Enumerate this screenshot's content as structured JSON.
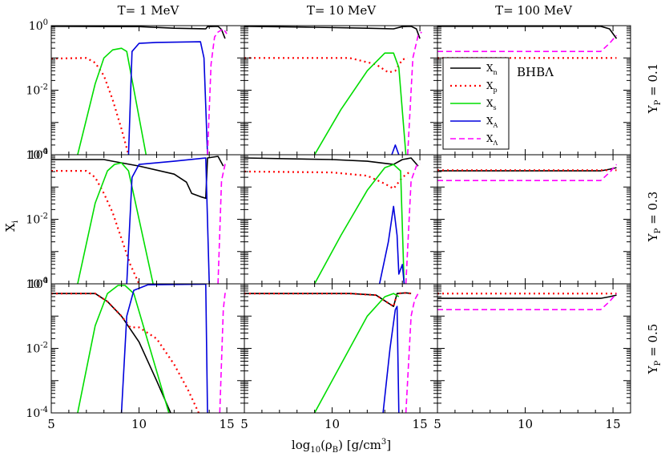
{
  "figure": {
    "xlabel": {
      "main": "log",
      "sub": "10",
      "mid": "(ρ",
      "sub2": "B",
      "rest": ") [g/cm",
      "sup": "3",
      "end": "]"
    },
    "ylabel": {
      "main": "X",
      "sub": "i"
    }
  },
  "colors": {
    "Xn": "#000000",
    "Xp": "#ff0000",
    "Xs": "#00dd00",
    "XA": "#0000dd",
    "XLambda": "#ff00ff"
  },
  "legend": {
    "entries": [
      {
        "key": "Xn",
        "main": "X",
        "sub": "n"
      },
      {
        "key": "Xp",
        "main": "X",
        "sub": "p"
      },
      {
        "key": "Xs",
        "main": "X",
        "sub": "s"
      },
      {
        "key": "XA",
        "main": "X",
        "sub": "A"
      },
      {
        "key": "XLambda",
        "main": "X",
        "sub": "Λ"
      }
    ],
    "model_label": "BHBΛ"
  },
  "chart_data": {
    "type": "line",
    "xlim": [
      5,
      16
    ],
    "ylim_log10": [
      -4,
      0
    ],
    "ytick_base": "10",
    "xticks": [
      "5",
      "10",
      "15"
    ],
    "yticks": [
      {
        "exp": "0",
        "v": 0
      },
      {
        "exp": "-2",
        "v": -2
      },
      {
        "exp": "-4",
        "v": -4
      }
    ],
    "columns": [
      {
        "title": "T= 1 MeV"
      },
      {
        "title": "T= 10 MeV"
      },
      {
        "title": "T= 100 MeV"
      }
    ],
    "rows": [
      {
        "label_main": "Y",
        "label_sub": "P",
        "label_rest": " = 0.1"
      },
      {
        "label_main": "Y",
        "label_sub": "P",
        "label_rest": " = 0.3"
      },
      {
        "label_main": "Y",
        "label_sub": "P",
        "label_rest": " = 0.5"
      }
    ],
    "panels": [
      [
        {
          "Xn": [
            [
              5,
              -0.02
            ],
            [
              10,
              -0.03
            ],
            [
              12,
              -0.08
            ],
            [
              13.8,
              -0.1
            ],
            [
              13.9,
              -0.03
            ],
            [
              14.5,
              -0.02
            ],
            [
              14.7,
              -0.12
            ],
            [
              14.9,
              -0.4
            ]
          ],
          "Xp": [
            [
              5,
              -1.02
            ],
            [
              7,
              -1.0
            ],
            [
              7.5,
              -1.15
            ],
            [
              8,
              -1.55
            ],
            [
              8.5,
              -2.3
            ],
            [
              9,
              -3.2
            ],
            [
              9.4,
              -4
            ]
          ],
          "Xs": [
            [
              6.5,
              -4
            ],
            [
              7.5,
              -1.8
            ],
            [
              8,
              -1.0
            ],
            [
              8.5,
              -0.75
            ],
            [
              9,
              -0.7
            ],
            [
              9.3,
              -0.8
            ],
            [
              10.4,
              -4
            ]
          ],
          "XA": [
            [
              9.4,
              -4
            ],
            [
              9.6,
              -0.8
            ],
            [
              10,
              -0.55
            ],
            [
              11,
              -0.52
            ],
            [
              13.5,
              -0.5
            ],
            [
              13.7,
              -1.0
            ],
            [
              13.9,
              -4
            ]
          ],
          "XLambda": [
            [
              13.9,
              -4
            ],
            [
              14.1,
              -1.2
            ],
            [
              14.3,
              -0.35
            ],
            [
              14.5,
              -0.2
            ],
            [
              14.8,
              -0.1
            ],
            [
              15.0,
              -0.25
            ]
          ]
        },
        {
          "Xn": [
            [
              5,
              -0.02
            ],
            [
              9,
              -0.05
            ],
            [
              12,
              -0.08
            ],
            [
              13.5,
              -0.1
            ],
            [
              14,
              -0.03
            ],
            [
              14.5,
              -0.02
            ],
            [
              14.8,
              -0.1
            ],
            [
              15,
              -0.4
            ]
          ],
          "Xp": [
            [
              5,
              -1.0
            ],
            [
              11,
              -1.0
            ],
            [
              12.5,
              -1.2
            ],
            [
              13.2,
              -1.45
            ],
            [
              13.6,
              -1.4
            ],
            [
              14,
              -1.05
            ],
            [
              14.3,
              -1.0
            ]
          ],
          "Xs": [
            [
              9,
              -4
            ],
            [
              10.5,
              -2.6
            ],
            [
              12,
              -1.4
            ],
            [
              13,
              -0.85
            ],
            [
              13.5,
              -0.85
            ],
            [
              13.8,
              -1.3
            ],
            [
              14.2,
              -4
            ]
          ],
          "XA": [
            [
              13.4,
              -4
            ],
            [
              13.6,
              -3.7
            ],
            [
              13.8,
              -4
            ]
          ],
          "XLambda": [
            [
              14.3,
              -4
            ],
            [
              14.6,
              -1.0
            ],
            [
              14.9,
              -0.3
            ],
            [
              15.1,
              -0.2
            ]
          ]
        },
        {
          "Xn": [
            [
              5,
              -0.02
            ],
            [
              14.3,
              -0.02
            ],
            [
              14.8,
              -0.1
            ],
            [
              15.2,
              -0.4
            ]
          ],
          "Xp": [
            [
              5,
              -1.0
            ],
            [
              15.2,
              -1.0
            ]
          ],
          "Xs": [],
          "XA": [],
          "XLambda": [
            [
              5,
              -0.8
            ],
            [
              14.3,
              -0.8
            ],
            [
              14.8,
              -0.55
            ],
            [
              15.2,
              -0.3
            ]
          ]
        }
      ],
      [
        {
          "Xn": [
            [
              5,
              -0.15
            ],
            [
              8,
              -0.15
            ],
            [
              8.5,
              -0.2
            ],
            [
              10,
              -0.35
            ],
            [
              12,
              -0.6
            ],
            [
              12.7,
              -0.85
            ],
            [
              13,
              -1.2
            ],
            [
              13.5,
              -1.3
            ],
            [
              13.8,
              -1.35
            ],
            [
              13.9,
              -0.1
            ],
            [
              14.5,
              -0.05
            ],
            [
              14.8,
              -0.35
            ]
          ],
          "Xp": [
            [
              5,
              -0.5
            ],
            [
              7,
              -0.5
            ],
            [
              7.5,
              -0.7
            ],
            [
              8,
              -1.2
            ],
            [
              8.5,
              -1.8
            ],
            [
              9,
              -2.6
            ],
            [
              9.5,
              -3.4
            ],
            [
              10,
              -4
            ]
          ],
          "Xs": [
            [
              6.5,
              -4
            ],
            [
              7.5,
              -1.5
            ],
            [
              8.2,
              -0.5
            ],
            [
              8.6,
              -0.3
            ],
            [
              9.0,
              -0.25
            ],
            [
              9.4,
              -0.5
            ],
            [
              10.8,
              -4
            ]
          ],
          "XA": [
            [
              9.3,
              -4
            ],
            [
              9.6,
              -0.7
            ],
            [
              10,
              -0.3
            ],
            [
              12,
              -0.2
            ],
            [
              13.8,
              -0.1
            ],
            [
              14,
              -4
            ]
          ],
          "XLambda": [
            [
              14.5,
              -4
            ],
            [
              14.7,
              -0.8
            ],
            [
              14.9,
              -0.3
            ],
            [
              15.0,
              -0.2
            ]
          ]
        },
        {
          "Xn": [
            [
              5,
              -0.1
            ],
            [
              10,
              -0.15
            ],
            [
              12,
              -0.2
            ],
            [
              13.5,
              -0.3
            ],
            [
              14,
              -0.15
            ],
            [
              14.5,
              -0.1
            ],
            [
              14.9,
              -0.35
            ]
          ],
          "Xp": [
            [
              5,
              -0.52
            ],
            [
              10,
              -0.55
            ],
            [
              12,
              -0.65
            ],
            [
              13,
              -0.9
            ],
            [
              13.5,
              -1.05
            ],
            [
              14,
              -0.7
            ],
            [
              14.5,
              -0.5
            ]
          ],
          "Xs": [
            [
              9,
              -4
            ],
            [
              10.5,
              -2.5
            ],
            [
              12,
              -1.1
            ],
            [
              13,
              -0.4
            ],
            [
              13.5,
              -0.3
            ],
            [
              13.9,
              -0.5
            ],
            [
              14.1,
              -4
            ]
          ],
          "XA": [
            [
              12.7,
              -4
            ],
            [
              13.2,
              -2.7
            ],
            [
              13.5,
              -1.6
            ],
            [
              13.7,
              -2.5
            ],
            [
              13.8,
              -3.7
            ],
            [
              14,
              -3.4
            ],
            [
              14.1,
              -4
            ]
          ],
          "XLambda": [
            [
              14.2,
              -4
            ],
            [
              14.5,
              -0.8
            ],
            [
              14.8,
              -0.35
            ],
            [
              15.0,
              -0.25
            ]
          ]
        },
        {
          "Xn": [
            [
              5,
              -0.5
            ],
            [
              14.3,
              -0.5
            ],
            [
              14.8,
              -0.45
            ],
            [
              15.2,
              -0.4
            ]
          ],
          "Xp": [
            [
              5,
              -0.48
            ],
            [
              15.2,
              -0.48
            ]
          ],
          "Xs": [],
          "XA": [],
          "XLambda": [
            [
              5,
              -0.8
            ],
            [
              14.3,
              -0.8
            ],
            [
              14.8,
              -0.55
            ],
            [
              15.2,
              -0.3
            ]
          ]
        }
      ],
      [
        {
          "Xn": [
            [
              5,
              -0.3
            ],
            [
              7.5,
              -0.3
            ],
            [
              8.2,
              -0.55
            ],
            [
              9,
              -1.0
            ],
            [
              10,
              -1.8
            ],
            [
              11,
              -3.0
            ],
            [
              11.8,
              -4
            ]
          ],
          "Xp": [
            [
              5,
              -0.3
            ],
            [
              7.5,
              -0.3
            ],
            [
              8.2,
              -0.55
            ],
            [
              9,
              -1.0
            ],
            [
              9.5,
              -1.35
            ],
            [
              10,
              -1.35
            ],
            [
              11,
              -1.7
            ],
            [
              12,
              -2.5
            ],
            [
              12.8,
              -3.3
            ],
            [
              13.4,
              -4
            ]
          ],
          "Xs": [
            [
              6.5,
              -4
            ],
            [
              7.5,
              -1.3
            ],
            [
              8.2,
              -0.3
            ],
            [
              8.8,
              -0.05
            ],
            [
              9.2,
              -0.05
            ],
            [
              9.7,
              -0.3
            ],
            [
              11.7,
              -4
            ]
          ],
          "XA": [
            [
              9,
              -4
            ],
            [
              9.3,
              -1.0
            ],
            [
              9.7,
              -0.2
            ],
            [
              10.5,
              -0.03
            ],
            [
              13.8,
              -0.01
            ],
            [
              13.9,
              -4
            ]
          ],
          "XLambda": [
            [
              14.6,
              -4
            ],
            [
              14.8,
              -0.8
            ],
            [
              14.9,
              -0.3
            ],
            [
              15.0,
              -0.25
            ]
          ]
        },
        {
          "Xn": [
            [
              5,
              -0.3
            ],
            [
              11,
              -0.3
            ],
            [
              12.5,
              -0.35
            ],
            [
              13.2,
              -0.6
            ],
            [
              13.5,
              -0.7
            ],
            [
              13.7,
              -0.3
            ],
            [
              14.2,
              -0.28
            ],
            [
              14.5,
              -0.3
            ]
          ],
          "Xp": [
            [
              5,
              -0.3
            ],
            [
              11,
              -0.3
            ],
            [
              12.5,
              -0.35
            ],
            [
              13.2,
              -0.6
            ],
            [
              13.5,
              -0.7
            ],
            [
              13.7,
              -0.3
            ],
            [
              14.2,
              -0.28
            ],
            [
              14.5,
              -0.3
            ]
          ],
          "Xs": [
            [
              9,
              -4
            ],
            [
              10.5,
              -2.5
            ],
            [
              12,
              -1.0
            ],
            [
              13,
              -0.4
            ],
            [
              13.5,
              -0.3
            ],
            [
              13.8,
              -0.4
            ]
          ],
          "XA": [
            [
              12.9,
              -4
            ],
            [
              13.3,
              -2.0
            ],
            [
              13.6,
              -0.8
            ],
            [
              13.7,
              -0.7
            ],
            [
              13.8,
              -4
            ]
          ],
          "XLambda": [
            [
              14.2,
              -4
            ],
            [
              14.5,
              -1.0
            ],
            [
              14.7,
              -0.5
            ],
            [
              14.9,
              -0.3
            ]
          ]
        },
        {
          "Xn": [
            [
              5,
              -0.45
            ],
            [
              14.3,
              -0.45
            ],
            [
              14.8,
              -0.4
            ],
            [
              15.2,
              -0.35
            ]
          ],
          "Xp": [
            [
              5,
              -0.3
            ],
            [
              15.2,
              -0.3
            ]
          ],
          "Xs": [],
          "XA": [],
          "XLambda": [
            [
              5,
              -0.8
            ],
            [
              14.3,
              -0.8
            ],
            [
              14.8,
              -0.55
            ],
            [
              15.2,
              -0.3
            ]
          ]
        }
      ]
    ]
  }
}
